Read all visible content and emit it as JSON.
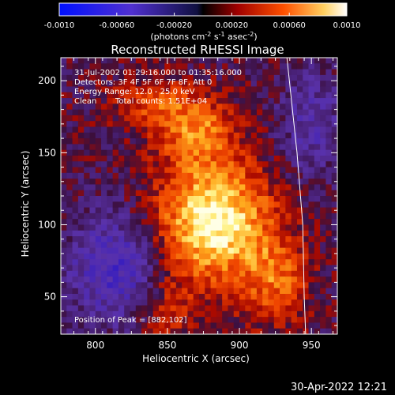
{
  "colorbar": {
    "ticks": [
      "-0.0010",
      "-0.00060",
      "-0.00020",
      "0.00020",
      "0.00060",
      "0.0010"
    ],
    "unit_label": "(photons cm",
    "unit_sup1": "-2",
    "unit_mid": " s",
    "unit_sup2": "-1",
    "unit_end": " asec",
    "unit_sup3": "-2",
    "unit_close": ")",
    "min": -0.001,
    "max": 0.001
  },
  "chart_data": {
    "type": "heatmap",
    "title": "Reconstructed RHESSI Image",
    "xlabel": "Heliocentric X (arcsec)",
    "ylabel": "Heliocentric Y (arcsec)",
    "xlim": [
      776,
      968
    ],
    "ylim": [
      24,
      216
    ],
    "xticks": [
      800,
      850,
      900,
      950
    ],
    "yticks": [
      50,
      100,
      150,
      200
    ],
    "peak": [
      882,
      102
    ],
    "limb": [
      [
        933,
        216
      ],
      [
        940,
        150
      ],
      [
        944,
        100
      ],
      [
        945,
        50
      ],
      [
        946,
        24
      ]
    ],
    "colors": {
      "neg_high": "#0000ff",
      "neg_mid": "#6040c0",
      "zero": "#000000",
      "pos_low": "#c00000",
      "pos_mid": "#ff6000",
      "pos_high": "#ffff90",
      "max": "#ffffff"
    }
  },
  "annotations": {
    "line1": "31-Jul-2002 01:29:16.000 to 01:35:16.000",
    "line2": "Detectors: 3F 4F 5F 6F 7F 8F, Att 0",
    "line3": "Energy Range: 12.0 - 25.0 keV",
    "line4_a": "Clean",
    "line4_b": "Total counts: 1.51E+04",
    "peak_text": "Position of Peak = [882,102]"
  },
  "footer": {
    "timestamp": "30-Apr-2022 12:21"
  }
}
